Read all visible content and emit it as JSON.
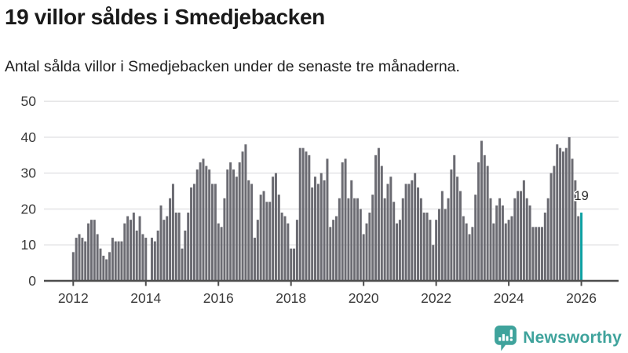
{
  "header": {
    "title": "19 villor såldes i Smedjebacken",
    "subtitle": "Antal sålda villor i Smedjebacken under de senaste tre månaderna."
  },
  "chart_data": {
    "type": "bar",
    "title": "19 villor såldes i Smedjebacken",
    "subtitle": "Antal sålda villor i Smedjebacken under de senaste tre månaderna.",
    "x_unit": "month",
    "x_start": "2012-01",
    "x_end": "2026-01",
    "ylim": [
      0,
      50
    ],
    "grid": "horizontal",
    "yticks": [
      0,
      10,
      20,
      30,
      40,
      50
    ],
    "xticks": [
      "2012",
      "2014",
      "2016",
      "2018",
      "2020",
      "2022",
      "2024",
      "2026"
    ],
    "values": [
      8,
      12,
      13,
      12,
      11,
      16,
      17,
      17,
      13,
      9,
      7,
      6,
      8,
      12,
      11,
      11,
      11,
      16,
      18,
      17,
      19,
      14,
      18,
      13,
      12,
      0,
      12,
      11,
      14,
      21,
      17,
      18,
      23,
      27,
      19,
      19,
      9,
      14,
      19,
      26,
      27,
      31,
      33,
      34,
      32,
      31,
      27,
      27,
      16,
      15,
      23,
      31,
      33,
      31,
      29,
      33,
      36,
      38,
      28,
      27,
      12,
      17,
      24,
      25,
      22,
      22,
      29,
      30,
      24,
      19,
      18,
      16,
      9,
      9,
      17,
      37,
      37,
      36,
      35,
      26,
      29,
      27,
      30,
      28,
      34,
      15,
      17,
      18,
      23,
      33,
      34,
      23,
      28,
      23,
      23,
      20,
      13,
      16,
      19,
      24,
      35,
      37,
      32,
      23,
      27,
      29,
      22,
      16,
      17,
      23,
      27,
      27,
      28,
      30,
      26,
      23,
      19,
      19,
      17,
      10,
      17,
      20,
      25,
      20,
      23,
      31,
      35,
      29,
      25,
      18,
      16,
      13,
      15,
      24,
      33,
      39,
      35,
      32,
      23,
      16,
      21,
      23,
      21,
      16,
      17,
      18,
      23,
      25,
      25,
      28,
      23,
      21,
      15,
      15,
      15,
      15,
      19,
      23,
      30,
      32,
      38,
      37,
      36,
      37,
      40,
      34,
      28,
      18,
      19
    ],
    "last_value": 19,
    "annotation": {
      "text": "19"
    },
    "highlight": "last-bar",
    "legend": "none",
    "colors": {
      "bar": "#6b6b72",
      "highlight": "#0fa1a3",
      "grid": "#e6e6e8",
      "axis": "#4d4d4d"
    }
  },
  "footer": {
    "brand": "Newsworthy",
    "brand_color": "#3fa39c"
  }
}
